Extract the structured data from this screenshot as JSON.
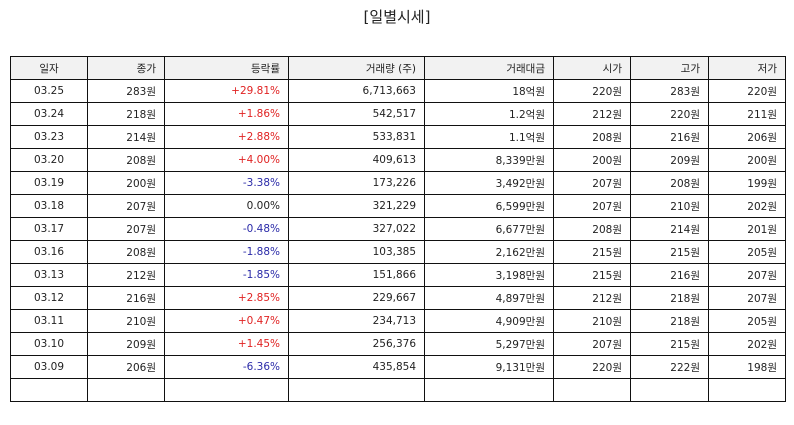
{
  "title": "[일별시세]",
  "headers": [
    "일자",
    "종가",
    "등락률",
    "거래량 (주)",
    "거래대금",
    "시가",
    "고가",
    "저가"
  ],
  "rows": [
    {
      "date": "03.25",
      "close": "283원",
      "change": "+29.81%",
      "trend": "up",
      "volume": "6,713,663",
      "amount": "18억원",
      "open": "220원",
      "high": "283원",
      "low": "220원"
    },
    {
      "date": "03.24",
      "close": "218원",
      "change": "+1.86%",
      "trend": "up",
      "volume": "542,517",
      "amount": "1.2억원",
      "open": "212원",
      "high": "220원",
      "low": "211원"
    },
    {
      "date": "03.23",
      "close": "214원",
      "change": "+2.88%",
      "trend": "up",
      "volume": "533,831",
      "amount": "1.1억원",
      "open": "208원",
      "high": "216원",
      "low": "206원"
    },
    {
      "date": "03.20",
      "close": "208원",
      "change": "+4.00%",
      "trend": "up",
      "volume": "409,613",
      "amount": "8,339만원",
      "open": "200원",
      "high": "209원",
      "low": "200원"
    },
    {
      "date": "03.19",
      "close": "200원",
      "change": "-3.38%",
      "trend": "down",
      "volume": "173,226",
      "amount": "3,492만원",
      "open": "207원",
      "high": "208원",
      "low": "199원"
    },
    {
      "date": "03.18",
      "close": "207원",
      "change": "0.00%",
      "trend": "flat",
      "volume": "321,229",
      "amount": "6,599만원",
      "open": "207원",
      "high": "210원",
      "low": "202원"
    },
    {
      "date": "03.17",
      "close": "207원",
      "change": "-0.48%",
      "trend": "down",
      "volume": "327,022",
      "amount": "6,677만원",
      "open": "208원",
      "high": "214원",
      "low": "201원"
    },
    {
      "date": "03.16",
      "close": "208원",
      "change": "-1.88%",
      "trend": "down",
      "volume": "103,385",
      "amount": "2,162만원",
      "open": "215원",
      "high": "215원",
      "low": "205원"
    },
    {
      "date": "03.13",
      "close": "212원",
      "change": "-1.85%",
      "trend": "down",
      "volume": "151,866",
      "amount": "3,198만원",
      "open": "215원",
      "high": "216원",
      "low": "207원"
    },
    {
      "date": "03.12",
      "close": "216원",
      "change": "+2.85%",
      "trend": "up",
      "volume": "229,667",
      "amount": "4,897만원",
      "open": "212원",
      "high": "218원",
      "low": "207원"
    },
    {
      "date": "03.11",
      "close": "210원",
      "change": "+0.47%",
      "trend": "up",
      "volume": "234,713",
      "amount": "4,909만원",
      "open": "210원",
      "high": "218원",
      "low": "205원"
    },
    {
      "date": "03.10",
      "close": "209원",
      "change": "+1.45%",
      "trend": "up",
      "volume": "256,376",
      "amount": "5,297만원",
      "open": "207원",
      "high": "215원",
      "low": "202원"
    },
    {
      "date": "03.09",
      "close": "206원",
      "change": "-6.36%",
      "trend": "down",
      "volume": "435,854",
      "amount": "9,131만원",
      "open": "220원",
      "high": "222원",
      "low": "198원"
    }
  ],
  "colors": {
    "up": "#e02222",
    "down": "#2a2aa8",
    "header_bg": "#f2f2f2",
    "border": "#111111"
  }
}
